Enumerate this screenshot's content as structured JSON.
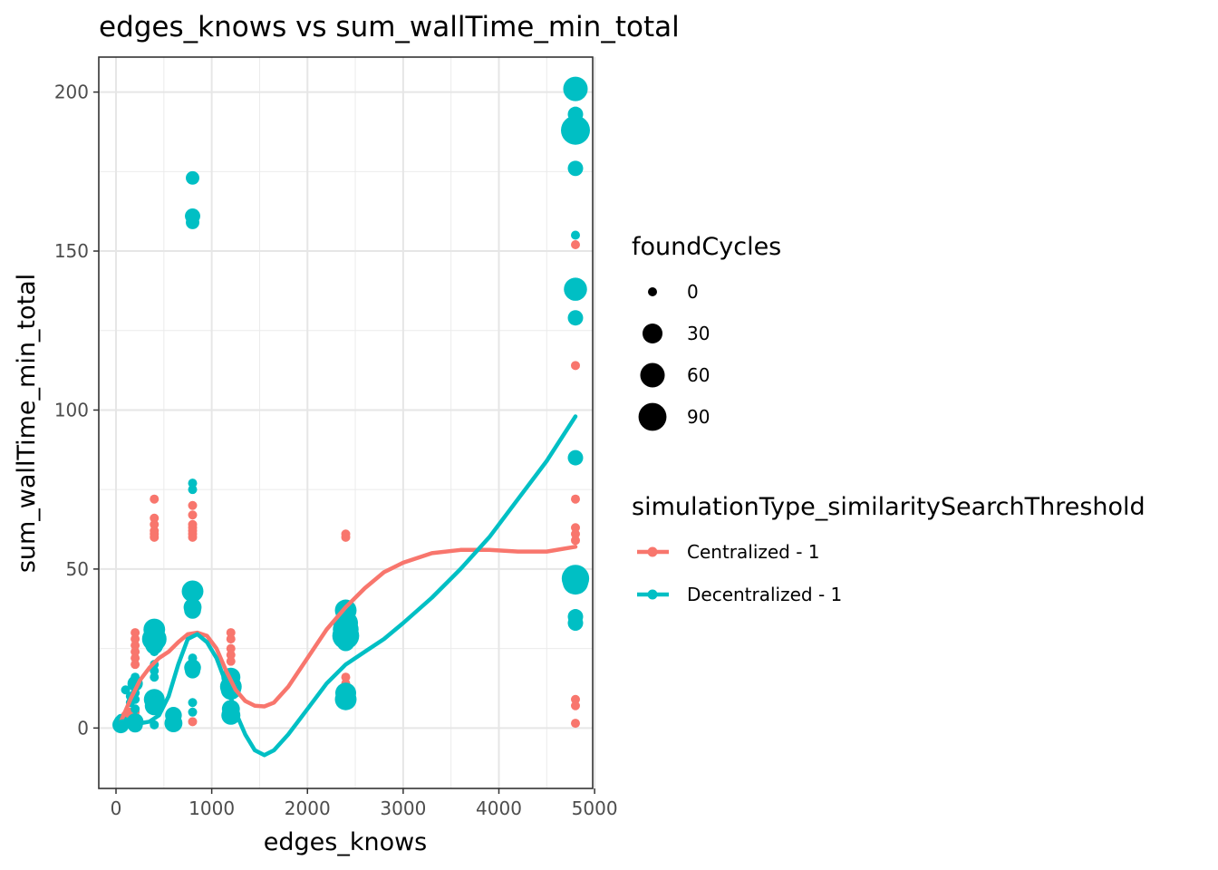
{
  "chart_data": {
    "type": "scatter",
    "title": "edges_knows  vs  sum_wallTime_min_total",
    "xlabel": "edges_knows",
    "ylabel": "sum_wallTime_min_total",
    "xlim": [
      -180,
      4980
    ],
    "ylim": [
      -19,
      211
    ],
    "x_ticks": [
      0,
      1000,
      2000,
      3000,
      4000,
      5000
    ],
    "y_ticks": [
      0,
      50,
      100,
      150,
      200
    ],
    "grid": true,
    "legend_placement": "right",
    "size_legend": {
      "title": "foundCycles",
      "entries": [
        {
          "label": "0",
          "value": 0
        },
        {
          "label": "30",
          "value": 30
        },
        {
          "label": "60",
          "value": 60
        },
        {
          "label": "90",
          "value": 90
        }
      ]
    },
    "color_legend": {
      "title": "simulationType_similaritySearchThreshold"
    },
    "series": [
      {
        "name": "Centralized - 1",
        "color": "#F8766D",
        "points": [
          {
            "x": 50,
            "y": 1,
            "size": 0
          },
          {
            "x": 80,
            "y": 2,
            "size": 0
          },
          {
            "x": 100,
            "y": 4,
            "size": 0
          },
          {
            "x": 150,
            "y": 5,
            "size": 0
          },
          {
            "x": 200,
            "y": 30,
            "size": 0
          },
          {
            "x": 200,
            "y": 28,
            "size": 0
          },
          {
            "x": 200,
            "y": 26,
            "size": 0
          },
          {
            "x": 200,
            "y": 24,
            "size": 0
          },
          {
            "x": 200,
            "y": 22,
            "size": 0
          },
          {
            "x": 200,
            "y": 20,
            "size": 0
          },
          {
            "x": 200,
            "y": 5,
            "size": 0
          },
          {
            "x": 200,
            "y": 3,
            "size": 0
          },
          {
            "x": 400,
            "y": 72,
            "size": 0
          },
          {
            "x": 400,
            "y": 66,
            "size": 0
          },
          {
            "x": 400,
            "y": 64,
            "size": 0
          },
          {
            "x": 400,
            "y": 62,
            "size": 0
          },
          {
            "x": 400,
            "y": 61,
            "size": 0
          },
          {
            "x": 400,
            "y": 60,
            "size": 0
          },
          {
            "x": 600,
            "y": 5,
            "size": 0
          },
          {
            "x": 600,
            "y": 3,
            "size": 0
          },
          {
            "x": 800,
            "y": 70,
            "size": 0
          },
          {
            "x": 800,
            "y": 67,
            "size": 0
          },
          {
            "x": 800,
            "y": 64,
            "size": 0
          },
          {
            "x": 800,
            "y": 63,
            "size": 0
          },
          {
            "x": 800,
            "y": 62,
            "size": 0
          },
          {
            "x": 800,
            "y": 61,
            "size": 0
          },
          {
            "x": 800,
            "y": 60,
            "size": 0
          },
          {
            "x": 800,
            "y": 2,
            "size": 0
          },
          {
            "x": 1200,
            "y": 30,
            "size": 0
          },
          {
            "x": 1200,
            "y": 28,
            "size": 0
          },
          {
            "x": 1200,
            "y": 25,
            "size": 0
          },
          {
            "x": 1200,
            "y": 23,
            "size": 0
          },
          {
            "x": 1200,
            "y": 21,
            "size": 0
          },
          {
            "x": 1200,
            "y": 5,
            "size": 0
          },
          {
            "x": 2400,
            "y": 61,
            "size": 0
          },
          {
            "x": 2400,
            "y": 60,
            "size": 0
          },
          {
            "x": 2400,
            "y": 16,
            "size": 0
          },
          {
            "x": 2400,
            "y": 14,
            "size": 0
          },
          {
            "x": 4800,
            "y": 152,
            "size": 0
          },
          {
            "x": 4800,
            "y": 114,
            "size": 0
          },
          {
            "x": 4800,
            "y": 72,
            "size": 0
          },
          {
            "x": 4800,
            "y": 63,
            "size": 0
          },
          {
            "x": 4800,
            "y": 61,
            "size": 0
          },
          {
            "x": 4800,
            "y": 59,
            "size": 0
          },
          {
            "x": 4800,
            "y": 9,
            "size": 0
          },
          {
            "x": 4800,
            "y": 7,
            "size": 0
          },
          {
            "x": 4800,
            "y": 1.5,
            "size": 0
          }
        ],
        "smooth": [
          {
            "x": 50,
            "y": 2
          },
          {
            "x": 150,
            "y": 9
          },
          {
            "x": 250,
            "y": 15
          },
          {
            "x": 350,
            "y": 19
          },
          {
            "x": 450,
            "y": 22
          },
          {
            "x": 550,
            "y": 24
          },
          {
            "x": 650,
            "y": 27
          },
          {
            "x": 750,
            "y": 29.5
          },
          {
            "x": 850,
            "y": 30
          },
          {
            "x": 950,
            "y": 29
          },
          {
            "x": 1050,
            "y": 25
          },
          {
            "x": 1150,
            "y": 18
          },
          {
            "x": 1250,
            "y": 12
          },
          {
            "x": 1350,
            "y": 8.5
          },
          {
            "x": 1450,
            "y": 7
          },
          {
            "x": 1550,
            "y": 6.8
          },
          {
            "x": 1650,
            "y": 8
          },
          {
            "x": 1800,
            "y": 13
          },
          {
            "x": 2000,
            "y": 22
          },
          {
            "x": 2200,
            "y": 31
          },
          {
            "x": 2400,
            "y": 38
          },
          {
            "x": 2600,
            "y": 44
          },
          {
            "x": 2800,
            "y": 49
          },
          {
            "x": 3000,
            "y": 52
          },
          {
            "x": 3300,
            "y": 55
          },
          {
            "x": 3600,
            "y": 56
          },
          {
            "x": 3900,
            "y": 56
          },
          {
            "x": 4200,
            "y": 55.5
          },
          {
            "x": 4500,
            "y": 55.5
          },
          {
            "x": 4800,
            "y": 57
          }
        ]
      },
      {
        "name": "Decentralized - 1",
        "color": "#00BFC4",
        "points": [
          {
            "x": 50,
            "y": 1,
            "size": 15
          },
          {
            "x": 50,
            "y": 2,
            "size": 5
          },
          {
            "x": 50,
            "y": 3,
            "size": 0
          },
          {
            "x": 100,
            "y": 12,
            "size": 0
          },
          {
            "x": 100,
            "y": 2,
            "size": 0
          },
          {
            "x": 150,
            "y": 10,
            "size": 0
          },
          {
            "x": 150,
            "y": 8,
            "size": 0
          },
          {
            "x": 200,
            "y": 16,
            "size": 0
          },
          {
            "x": 200,
            "y": 14,
            "size": 10
          },
          {
            "x": 200,
            "y": 11,
            "size": 0
          },
          {
            "x": 200,
            "y": 9,
            "size": 0
          },
          {
            "x": 200,
            "y": 6,
            "size": 0
          },
          {
            "x": 200,
            "y": 2,
            "size": 15
          },
          {
            "x": 200,
            "y": 1,
            "size": 10
          },
          {
            "x": 400,
            "y": 31,
            "size": 40
          },
          {
            "x": 400,
            "y": 28,
            "size": 60
          },
          {
            "x": 400,
            "y": 26,
            "size": 20
          },
          {
            "x": 400,
            "y": 24,
            "size": 0
          },
          {
            "x": 400,
            "y": 20,
            "size": 0
          },
          {
            "x": 400,
            "y": 18,
            "size": 0
          },
          {
            "x": 400,
            "y": 16,
            "size": 0
          },
          {
            "x": 400,
            "y": 9,
            "size": 35
          },
          {
            "x": 400,
            "y": 7,
            "size": 25
          },
          {
            "x": 400,
            "y": 1,
            "size": 0
          },
          {
            "x": 600,
            "y": 4,
            "size": 15
          },
          {
            "x": 600,
            "y": 1.5,
            "size": 20
          },
          {
            "x": 800,
            "y": 173,
            "size": 5
          },
          {
            "x": 800,
            "y": 161,
            "size": 10
          },
          {
            "x": 800,
            "y": 159,
            "size": 5
          },
          {
            "x": 800,
            "y": 77,
            "size": 0
          },
          {
            "x": 800,
            "y": 75,
            "size": 0
          },
          {
            "x": 800,
            "y": 43,
            "size": 40
          },
          {
            "x": 800,
            "y": 38,
            "size": 20
          },
          {
            "x": 800,
            "y": 37,
            "size": 15
          },
          {
            "x": 800,
            "y": 22,
            "size": 0
          },
          {
            "x": 800,
            "y": 19,
            "size": 15
          },
          {
            "x": 800,
            "y": 18,
            "size": 10
          },
          {
            "x": 800,
            "y": 8,
            "size": 0
          },
          {
            "x": 800,
            "y": 5,
            "size": 0
          },
          {
            "x": 1200,
            "y": 16,
            "size": 25
          },
          {
            "x": 1200,
            "y": 13,
            "size": 40
          },
          {
            "x": 1200,
            "y": 12,
            "size": 30
          },
          {
            "x": 1200,
            "y": 6,
            "size": 20
          },
          {
            "x": 1200,
            "y": 4,
            "size": 25
          },
          {
            "x": 2400,
            "y": 37,
            "size": 40
          },
          {
            "x": 2400,
            "y": 33,
            "size": 60
          },
          {
            "x": 2400,
            "y": 31,
            "size": 70
          },
          {
            "x": 2400,
            "y": 29,
            "size": 80
          },
          {
            "x": 2400,
            "y": 27,
            "size": 20
          },
          {
            "x": 2400,
            "y": 11,
            "size": 35
          },
          {
            "x": 2400,
            "y": 9,
            "size": 40
          },
          {
            "x": 4800,
            "y": 201,
            "size": 60
          },
          {
            "x": 4800,
            "y": 193,
            "size": 10
          },
          {
            "x": 4800,
            "y": 188,
            "size": 100
          },
          {
            "x": 4800,
            "y": 176,
            "size": 10
          },
          {
            "x": 4800,
            "y": 155,
            "size": 0
          },
          {
            "x": 4800,
            "y": 138,
            "size": 50
          },
          {
            "x": 4800,
            "y": 129,
            "size": 10
          },
          {
            "x": 4800,
            "y": 85,
            "size": 10
          },
          {
            "x": 4800,
            "y": 47,
            "size": 85
          },
          {
            "x": 4800,
            "y": 46,
            "size": 70
          },
          {
            "x": 4800,
            "y": 35,
            "size": 10
          },
          {
            "x": 4800,
            "y": 33,
            "size": 10
          },
          {
            "x": 4800,
            "y": 32,
            "size": 0
          }
        ],
        "smooth": [
          {
            "x": 50,
            "y": 2
          },
          {
            "x": 150,
            "y": 2.5
          },
          {
            "x": 250,
            "y": 1.5
          },
          {
            "x": 350,
            "y": 2
          },
          {
            "x": 450,
            "y": 4
          },
          {
            "x": 550,
            "y": 10
          },
          {
            "x": 650,
            "y": 20
          },
          {
            "x": 750,
            "y": 28
          },
          {
            "x": 850,
            "y": 29.5
          },
          {
            "x": 950,
            "y": 27
          },
          {
            "x": 1050,
            "y": 22
          },
          {
            "x": 1150,
            "y": 14
          },
          {
            "x": 1250,
            "y": 5
          },
          {
            "x": 1350,
            "y": -2
          },
          {
            "x": 1450,
            "y": -7
          },
          {
            "x": 1550,
            "y": -8.5
          },
          {
            "x": 1650,
            "y": -7
          },
          {
            "x": 1800,
            "y": -2
          },
          {
            "x": 2000,
            "y": 6
          },
          {
            "x": 2200,
            "y": 14
          },
          {
            "x": 2400,
            "y": 20
          },
          {
            "x": 2600,
            "y": 24
          },
          {
            "x": 2800,
            "y": 28
          },
          {
            "x": 3000,
            "y": 33
          },
          {
            "x": 3300,
            "y": 41
          },
          {
            "x": 3600,
            "y": 50
          },
          {
            "x": 3900,
            "y": 60
          },
          {
            "x": 4200,
            "y": 72
          },
          {
            "x": 4500,
            "y": 84
          },
          {
            "x": 4800,
            "y": 98
          }
        ]
      }
    ]
  }
}
